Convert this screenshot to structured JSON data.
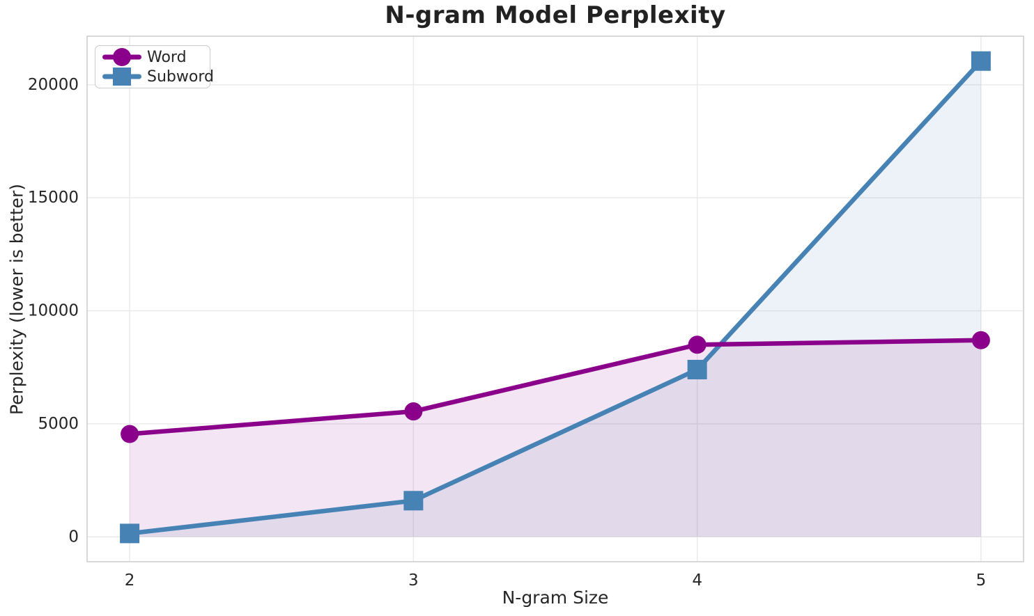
{
  "title": "N-gram Model Perplexity",
  "xlabel": "N-gram Size",
  "ylabel": "Perplexity (lower is better)",
  "legend": {
    "position": "upper left",
    "items": [
      {
        "label": "Word",
        "marker": "circle",
        "color": "#8B008B"
      },
      {
        "label": "Subword",
        "marker": "square",
        "color": "#4682B4"
      }
    ]
  },
  "colors": {
    "background": "#ffffff",
    "word": "#8B008B",
    "subword": "#4682B4",
    "grid": "#e9e9e9",
    "spine": "#cccccc",
    "text": "#262626",
    "title_text": "#222222"
  },
  "chart_data": {
    "type": "line",
    "title": "N-gram Model Perplexity",
    "xlabel": "N-gram Size",
    "ylabel": "Perplexity (lower is better)",
    "x": [
      2,
      3,
      4,
      5
    ],
    "series": [
      {
        "name": "Word",
        "marker": "circle",
        "color": "#8B008B",
        "values": [
          4550,
          5550,
          8500,
          8700
        ]
      },
      {
        "name": "Subword",
        "marker": "square",
        "color": "#4682B4",
        "values": [
          150,
          1600,
          7400,
          21050
        ]
      }
    ],
    "xticks": [
      2,
      3,
      4,
      5
    ],
    "yticks": [
      0,
      5000,
      10000,
      15000,
      20000
    ],
    "xlim": [
      1.85,
      5.15
    ],
    "ylim": [
      -1100,
      22150
    ],
    "grid": true,
    "area_fill": true,
    "fill_opacity": 0.1,
    "fill_baseline": 0,
    "legend_position": "upper left"
  }
}
